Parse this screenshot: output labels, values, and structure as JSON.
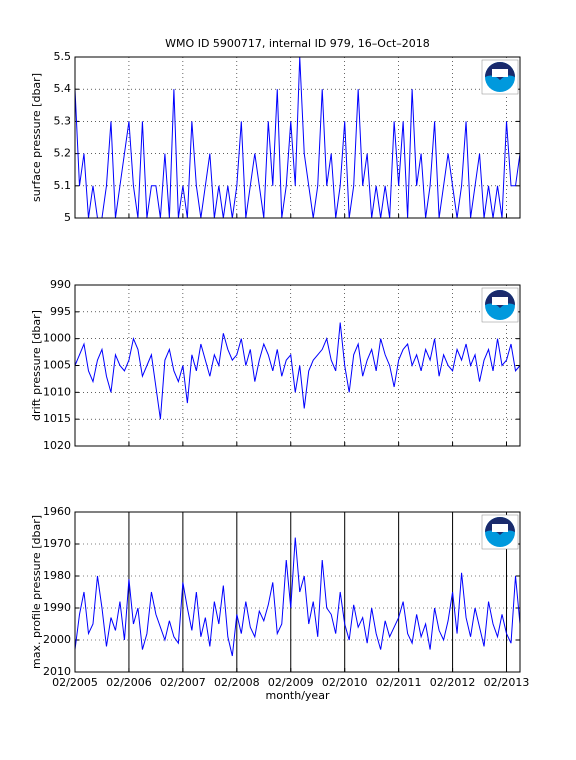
{
  "chart_data": [
    {
      "type": "line",
      "title": "WMO ID 5900717, internal ID 979, 16–Oct–2018",
      "ylabel": "surface pressure [dbar]",
      "x": [
        "2005-02",
        "2005-03",
        "2005-04",
        "2005-05",
        "2005-06",
        "2005-07",
        "2005-08",
        "2005-09",
        "2005-10",
        "2005-11",
        "2005-12",
        "2006-01",
        "2006-02",
        "2006-03",
        "2006-04",
        "2006-05",
        "2006-06",
        "2006-07",
        "2006-08",
        "2006-09",
        "2006-10",
        "2006-11",
        "2006-12",
        "2007-01",
        "2007-02",
        "2007-03",
        "2007-04",
        "2007-05",
        "2007-06",
        "2007-07",
        "2007-08",
        "2007-09",
        "2007-10",
        "2007-11",
        "2007-12",
        "2008-01",
        "2008-02",
        "2008-03",
        "2008-04",
        "2008-05",
        "2008-06",
        "2008-07",
        "2008-08",
        "2008-09",
        "2008-10",
        "2008-11",
        "2008-12",
        "2009-01",
        "2009-02",
        "2009-03",
        "2009-04",
        "2009-05",
        "2009-06",
        "2009-07",
        "2009-08",
        "2009-09",
        "2009-10",
        "2009-11",
        "2009-12",
        "2010-01",
        "2010-02",
        "2010-03",
        "2010-04",
        "2010-05",
        "2010-06",
        "2010-07",
        "2010-08",
        "2010-09",
        "2010-10",
        "2010-11",
        "2010-12",
        "2011-01",
        "2011-02",
        "2011-03",
        "2011-04",
        "2011-05",
        "2011-06",
        "2011-07",
        "2011-08",
        "2011-09",
        "2011-10",
        "2011-11",
        "2011-12",
        "2012-01",
        "2012-02",
        "2012-03",
        "2012-04",
        "2012-05",
        "2012-06",
        "2012-07",
        "2012-08",
        "2012-09",
        "2012-10",
        "2012-11",
        "2012-12",
        "2013-01",
        "2013-02",
        "2013-03",
        "2013-04",
        "2013-05"
      ],
      "values": [
        5.4,
        5.1,
        5.2,
        5,
        5.1,
        5,
        5,
        5.1,
        5.3,
        5,
        5.1,
        5.2,
        5.3,
        5.1,
        5,
        5.3,
        5,
        5.1,
        5.1,
        5,
        5.2,
        5,
        5.4,
        5,
        5.1,
        5,
        5.3,
        5.1,
        5,
        5.1,
        5.2,
        5,
        5.1,
        5,
        5.1,
        5,
        5.1,
        5.3,
        5,
        5.1,
        5.2,
        5.1,
        5,
        5.3,
        5.1,
        5.4,
        5,
        5.1,
        5.3,
        5.1,
        5.5,
        5.2,
        5.1,
        5,
        5.1,
        5.4,
        5.1,
        5.2,
        5,
        5.1,
        5.3,
        5,
        5.1,
        5.4,
        5.1,
        5.2,
        5,
        5.1,
        5,
        5.1,
        5,
        5.3,
        5.1,
        5.3,
        5,
        5.4,
        5.1,
        5.2,
        5,
        5.1,
        5.3,
        5,
        5.1,
        5.2,
        5.1,
        5,
        5.1,
        5.3,
        5,
        5.1,
        5.2,
        5,
        5.1,
        5,
        5.1,
        5,
        5.3,
        5.1,
        5.1,
        5.2
      ],
      "color": "#0000ff",
      "xlim": [
        "2005-02",
        "2013-05"
      ],
      "ylim": [
        5,
        5.5
      ],
      "yticks": [
        5,
        5.1,
        5.2,
        5.3,
        5.4,
        5.5
      ],
      "xticks": [
        "2005-02",
        "2006-02",
        "2007-02",
        "2008-02",
        "2009-02",
        "2010-02",
        "2011-02",
        "2012-02",
        "2013-02"
      ],
      "grid": true,
      "xgrid_style": "dotted"
    },
    {
      "type": "line",
      "ylabel": "drift pressure [dbar]",
      "x": [
        "2005-02",
        "2005-03",
        "2005-04",
        "2005-05",
        "2005-06",
        "2005-07",
        "2005-08",
        "2005-09",
        "2005-10",
        "2005-11",
        "2005-12",
        "2006-01",
        "2006-02",
        "2006-03",
        "2006-04",
        "2006-05",
        "2006-06",
        "2006-07",
        "2006-08",
        "2006-09",
        "2006-10",
        "2006-11",
        "2006-12",
        "2007-01",
        "2007-02",
        "2007-03",
        "2007-04",
        "2007-05",
        "2007-06",
        "2007-07",
        "2007-08",
        "2007-09",
        "2007-10",
        "2007-11",
        "2007-12",
        "2008-01",
        "2008-02",
        "2008-03",
        "2008-04",
        "2008-05",
        "2008-06",
        "2008-07",
        "2008-08",
        "2008-09",
        "2008-10",
        "2008-11",
        "2008-12",
        "2009-01",
        "2009-02",
        "2009-03",
        "2009-04",
        "2009-05",
        "2009-06",
        "2009-07",
        "2009-08",
        "2009-09",
        "2009-10",
        "2009-11",
        "2009-12",
        "2010-01",
        "2010-02",
        "2010-03",
        "2010-04",
        "2010-05",
        "2010-06",
        "2010-07",
        "2010-08",
        "2010-09",
        "2010-10",
        "2010-11",
        "2010-12",
        "2011-01",
        "2011-02",
        "2011-03",
        "2011-04",
        "2011-05",
        "2011-06",
        "2011-07",
        "2011-08",
        "2011-09",
        "2011-10",
        "2011-11",
        "2011-12",
        "2012-01",
        "2012-02",
        "2012-03",
        "2012-04",
        "2012-05",
        "2012-06",
        "2012-07",
        "2012-08",
        "2012-09",
        "2012-10",
        "2012-11",
        "2012-12",
        "2013-01",
        "2013-02",
        "2013-03",
        "2013-04",
        "2013-05"
      ],
      "values": [
        1005,
        1003,
        1001,
        1006,
        1008,
        1004,
        1002,
        1007,
        1010,
        1003,
        1005,
        1006,
        1004,
        1000,
        1002,
        1007,
        1005,
        1003,
        1009,
        1015,
        1004,
        1002,
        1006,
        1008,
        1005,
        1012,
        1003,
        1006,
        1001,
        1004,
        1007,
        1003,
        1005,
        999,
        1002,
        1004,
        1003,
        1000,
        1005,
        1002,
        1008,
        1004,
        1001,
        1003,
        1006,
        1002,
        1007,
        1004,
        1003,
        1010,
        1005,
        1013,
        1006,
        1004,
        1003,
        1002,
        1000,
        1004,
        1006,
        997,
        1005,
        1010,
        1003,
        1001,
        1007,
        1004,
        1002,
        1006,
        1000,
        1003,
        1005,
        1009,
        1004,
        1002,
        1001,
        1005,
        1003,
        1006,
        1002,
        1004,
        1000,
        1007,
        1003,
        1005,
        1006,
        1002,
        1004,
        1001,
        1005,
        1003,
        1008,
        1004,
        1002,
        1006,
        1000,
        1005,
        1004,
        1001,
        1006,
        1005
      ],
      "color": "#0000ff",
      "xlim": [
        "2005-02",
        "2013-05"
      ],
      "ylim": [
        1020,
        990
      ],
      "yticks": [
        990,
        995,
        1000,
        1005,
        1010,
        1015,
        1020
      ],
      "xticks": [
        "2005-02",
        "2006-02",
        "2007-02",
        "2008-02",
        "2009-02",
        "2010-02",
        "2011-02",
        "2012-02",
        "2013-02"
      ],
      "grid": true,
      "xgrid_style": "dotted"
    },
    {
      "type": "line",
      "ylabel": "max. profile pressure [dbar]",
      "xlabel": "month/year",
      "x": [
        "2005-02",
        "2005-03",
        "2005-04",
        "2005-05",
        "2005-06",
        "2005-07",
        "2005-08",
        "2005-09",
        "2005-10",
        "2005-11",
        "2005-12",
        "2006-01",
        "2006-02",
        "2006-03",
        "2006-04",
        "2006-05",
        "2006-06",
        "2006-07",
        "2006-08",
        "2006-09",
        "2006-10",
        "2006-11",
        "2006-12",
        "2007-01",
        "2007-02",
        "2007-03",
        "2007-04",
        "2007-05",
        "2007-06",
        "2007-07",
        "2007-08",
        "2007-09",
        "2007-10",
        "2007-11",
        "2007-12",
        "2008-01",
        "2008-02",
        "2008-03",
        "2008-04",
        "2008-05",
        "2008-06",
        "2008-07",
        "2008-08",
        "2008-09",
        "2008-10",
        "2008-11",
        "2008-12",
        "2009-01",
        "2009-02",
        "2009-03",
        "2009-04",
        "2009-05",
        "2009-06",
        "2009-07",
        "2009-08",
        "2009-09",
        "2009-10",
        "2009-11",
        "2009-12",
        "2010-01",
        "2010-02",
        "2010-03",
        "2010-04",
        "2010-05",
        "2010-06",
        "2010-07",
        "2010-08",
        "2010-09",
        "2010-10",
        "2010-11",
        "2010-12",
        "2011-01",
        "2011-02",
        "2011-03",
        "2011-04",
        "2011-05",
        "2011-06",
        "2011-07",
        "2011-08",
        "2011-09",
        "2011-10",
        "2011-11",
        "2011-12",
        "2012-01",
        "2012-02",
        "2012-03",
        "2012-04",
        "2012-05",
        "2012-06",
        "2012-07",
        "2012-08",
        "2012-09",
        "2012-10",
        "2012-11",
        "2012-12",
        "2013-01",
        "2013-02",
        "2013-03",
        "2013-04",
        "2013-05"
      ],
      "values": [
        2003,
        1992,
        1985,
        1998,
        1995,
        1980,
        1990,
        2002,
        1993,
        1997,
        1988,
        2000,
        1981,
        1995,
        1990,
        2003,
        1998,
        1985,
        1992,
        1996,
        2000,
        1994,
        1999,
        2001,
        1982,
        1990,
        1997,
        1985,
        1999,
        1993,
        2002,
        1988,
        1995,
        1983,
        1999,
        2005,
        1992,
        1998,
        1988,
        1996,
        1999,
        1991,
        1994,
        1989,
        1982,
        1998,
        1995,
        1975,
        1990,
        1968,
        1985,
        1980,
        1995,
        1988,
        1999,
        1975,
        1990,
        1992,
        1998,
        1985,
        1995,
        2000,
        1989,
        1996,
        1993,
        2001,
        1990,
        1998,
        2003,
        1994,
        1999,
        1996,
        1993,
        1988,
        1998,
        2001,
        1992,
        1999,
        1995,
        2003,
        1990,
        1997,
        2000,
        1994,
        1985,
        1998,
        1979,
        1993,
        1999,
        1990,
        1996,
        2002,
        1988,
        1995,
        1999,
        1992,
        1998,
        2001,
        1980,
        1995
      ],
      "color": "#0000ff",
      "xlim": [
        "2005-02",
        "2013-05"
      ],
      "ylim": [
        2010,
        1960
      ],
      "yticks": [
        1960,
        1970,
        1980,
        1990,
        2000,
        2010
      ],
      "xticks": [
        {
          "value": "2005-02",
          "label": "02/2005"
        },
        {
          "value": "2006-02",
          "label": "02/2006"
        },
        {
          "value": "2007-02",
          "label": "02/2007"
        },
        {
          "value": "2008-02",
          "label": "02/2008"
        },
        {
          "value": "2009-02",
          "label": "02/2009"
        },
        {
          "value": "2010-02",
          "label": "02/2010"
        },
        {
          "value": "2011-02",
          "label": "02/2011"
        },
        {
          "value": "2012-02",
          "label": "02/2012"
        },
        {
          "value": "2013-02",
          "label": "02/2013"
        }
      ],
      "grid": true,
      "xgrid_style": "solid"
    }
  ]
}
